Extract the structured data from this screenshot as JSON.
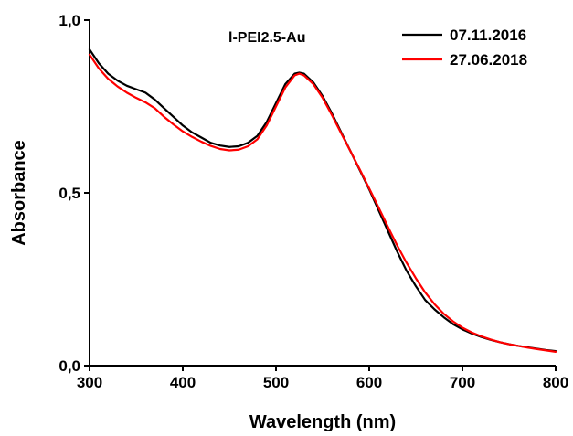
{
  "chart_data": {
    "type": "line",
    "annotation": "l-PEI2.5-Au",
    "xlabel": "Wavelength (nm)",
    "ylabel": "Absorbance",
    "xlim": [
      300,
      800
    ],
    "ylim": [
      0,
      1.0
    ],
    "x_ticks": [
      300,
      400,
      500,
      600,
      700,
      800
    ],
    "x_tick_labels": [
      "300",
      "400",
      "500",
      "600",
      "700",
      "800"
    ],
    "y_ticks": [
      0,
      0.5,
      1.0
    ],
    "y_tick_labels": [
      "0,0",
      "0,5",
      "1,0"
    ],
    "legend_position": "top-right",
    "grid": false,
    "series": [
      {
        "name": "07.11.2016",
        "color": "#000000",
        "x": [
          300,
          310,
          320,
          330,
          340,
          350,
          360,
          370,
          380,
          390,
          400,
          410,
          420,
          430,
          440,
          450,
          460,
          470,
          480,
          490,
          500,
          510,
          520,
          525,
          530,
          540,
          550,
          560,
          570,
          580,
          590,
          600,
          610,
          620,
          630,
          640,
          650,
          660,
          670,
          680,
          690,
          700,
          710,
          720,
          730,
          740,
          750,
          760,
          770,
          780,
          790,
          800
        ],
        "values": [
          0.915,
          0.875,
          0.845,
          0.825,
          0.81,
          0.8,
          0.79,
          0.77,
          0.745,
          0.72,
          0.695,
          0.675,
          0.66,
          0.645,
          0.637,
          0.633,
          0.635,
          0.645,
          0.665,
          0.705,
          0.76,
          0.815,
          0.845,
          0.848,
          0.845,
          0.82,
          0.78,
          0.73,
          0.675,
          0.62,
          0.565,
          0.51,
          0.45,
          0.39,
          0.33,
          0.275,
          0.23,
          0.19,
          0.163,
          0.14,
          0.12,
          0.105,
          0.093,
          0.083,
          0.075,
          0.068,
          0.062,
          0.057,
          0.053,
          0.049,
          0.045,
          0.042
        ]
      },
      {
        "name": "27.06.2018",
        "color": "#ff0000",
        "x": [
          300,
          310,
          320,
          330,
          340,
          350,
          360,
          370,
          380,
          390,
          400,
          410,
          420,
          430,
          440,
          450,
          460,
          470,
          480,
          490,
          500,
          510,
          520,
          525,
          530,
          540,
          550,
          560,
          570,
          580,
          590,
          600,
          610,
          620,
          630,
          640,
          650,
          660,
          670,
          680,
          690,
          700,
          710,
          720,
          730,
          740,
          750,
          760,
          770,
          780,
          790,
          800
        ],
        "values": [
          0.9,
          0.86,
          0.83,
          0.808,
          0.79,
          0.775,
          0.762,
          0.745,
          0.72,
          0.698,
          0.678,
          0.662,
          0.648,
          0.636,
          0.627,
          0.623,
          0.625,
          0.635,
          0.655,
          0.695,
          0.75,
          0.805,
          0.84,
          0.845,
          0.84,
          0.815,
          0.775,
          0.725,
          0.672,
          0.62,
          0.567,
          0.513,
          0.458,
          0.402,
          0.348,
          0.298,
          0.253,
          0.212,
          0.178,
          0.15,
          0.128,
          0.11,
          0.096,
          0.085,
          0.076,
          0.068,
          0.062,
          0.057,
          0.052,
          0.048,
          0.044,
          0.04
        ]
      }
    ]
  }
}
